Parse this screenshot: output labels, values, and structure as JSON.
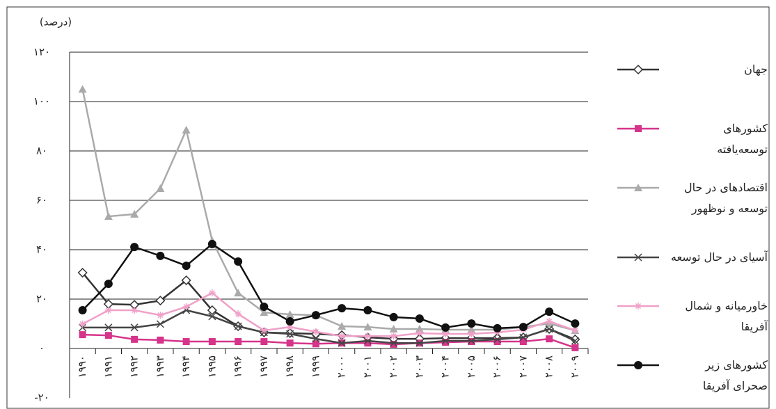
{
  "chart_data": {
    "type": "line",
    "y_label": "(درصد)",
    "categories": [
      "۱۹۹۰",
      "۱۹۹۱",
      "۱۹۹۲",
      "۱۹۹۳",
      "۱۹۹۴",
      "۱۹۹۵",
      "۱۹۹۶",
      "۱۹۹۷",
      "۱۹۹۸",
      "۱۹۹۹",
      "۲۰۰۰",
      "۲۰۰۱",
      "۲۰۰۲",
      "۲۰۰۳",
      "۲۰۰۴",
      "۲۰۰۵",
      "۲۰۰۶",
      "۲۰۰۷",
      "۲۰۰۸",
      "۲۰۰۹"
    ],
    "ylim": [
      -20,
      120
    ],
    "yticks": [
      {
        "value": -20,
        "label": "-۲۰"
      },
      {
        "value": 0,
        "label": "۰"
      },
      {
        "value": 20,
        "label": "۲۰"
      },
      {
        "value": 40,
        "label": "۴۰"
      },
      {
        "value": 60,
        "label": "۶۰"
      },
      {
        "value": 80,
        "label": "۸۰"
      },
      {
        "value": 100,
        "label": "۱۰۰"
      },
      {
        "value": 120,
        "label": "۱۲۰"
      }
    ],
    "grid": true,
    "legend": "right",
    "series": [
      {
        "name": "جهان",
        "color": "#333333",
        "marker": "diamond",
        "values": [
          30.7,
          18,
          17.7,
          19.4,
          27.6,
          15.5,
          9,
          6.5,
          6.2,
          5.9,
          5.4,
          4.5,
          3.9,
          3.9,
          4.2,
          4.2,
          4.2,
          4.5,
          7.9,
          3.7
        ]
      },
      {
        "name": "کشورهای توسعه‌یافته",
        "color": "#d6338a",
        "marker": "square",
        "values": [
          5.6,
          5.3,
          3.7,
          3.4,
          2.8,
          2.8,
          2.8,
          2.8,
          2.2,
          1.9,
          2.2,
          2.2,
          1.7,
          2.2,
          2.5,
          2.8,
          2.8,
          2.8,
          3.9,
          0.3
        ]
      },
      {
        "name": "اقتصادهای در حال توسعه و نوظهور",
        "color": "#aaaaaa",
        "marker": "triangle",
        "values": [
          105,
          53.5,
          54.4,
          64.8,
          88.5,
          43.7,
          22.5,
          14.6,
          13.8,
          13.5,
          9,
          8.7,
          7.9,
          7.9,
          7.6,
          7.6,
          7.6,
          8.7,
          10.1,
          7.3
        ]
      },
      {
        "name": "آسیای در حال توسعه",
        "color": "#444444",
        "marker": "x",
        "values": [
          8.5,
          8.5,
          8.5,
          9.9,
          15.5,
          13,
          9,
          6.5,
          5.9,
          3.9,
          2.2,
          3.1,
          2.2,
          2.2,
          3.1,
          3.1,
          3.7,
          4.5,
          7.9,
          3.1
        ]
      },
      {
        "name": "خاورمیانه و شمال آفریقا",
        "color": "#f0a0c8",
        "marker": "star",
        "values": [
          9.9,
          15.5,
          15.5,
          13.5,
          16.9,
          22.5,
          14,
          7.3,
          8.7,
          6.8,
          5,
          5,
          5,
          6.2,
          5.9,
          5.9,
          6.5,
          7.6,
          11,
          7.3
        ]
      },
      {
        "name": "کشورهای زیر صحرای آفریقا",
        "color": "#111111",
        "marker": "circle",
        "values": [
          15.5,
          26.2,
          41.1,
          37.5,
          33.5,
          42.3,
          35.2,
          16.9,
          11,
          13.5,
          16.3,
          15.5,
          12.7,
          12.1,
          8.5,
          10.1,
          8.2,
          8.7,
          14.9,
          10.1
        ]
      }
    ]
  }
}
